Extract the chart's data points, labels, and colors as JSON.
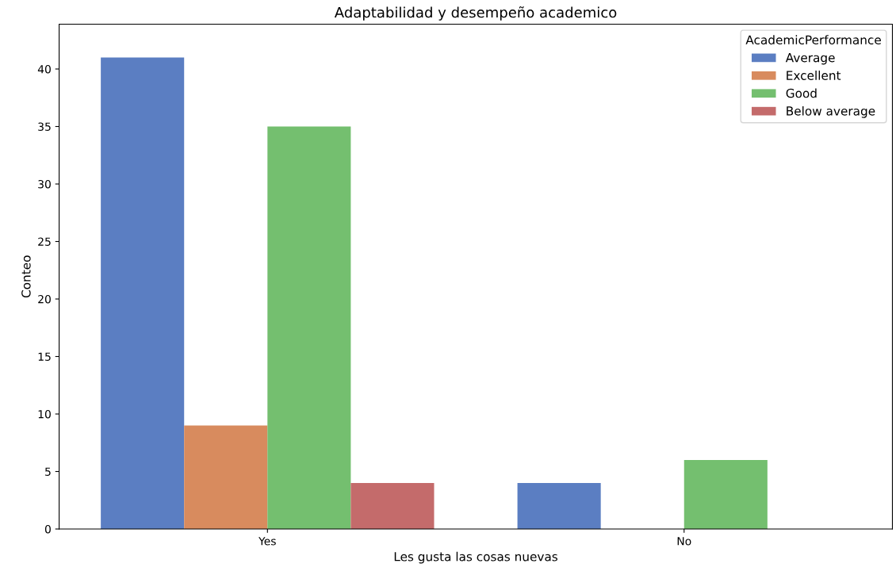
{
  "chart_data": {
    "type": "bar",
    "title": "Adaptabilidad y desempeño academico",
    "xlabel": "Les gusta las cosas nuevas",
    "ylabel": "Conteo",
    "categories": [
      "Yes",
      "No"
    ],
    "series": [
      {
        "name": "Average",
        "color": "#5b7ec2",
        "values": [
          41,
          4
        ]
      },
      {
        "name": "Excellent",
        "color": "#d88b5e",
        "values": [
          9,
          null
        ]
      },
      {
        "name": "Good",
        "color": "#74bf6f",
        "values": [
          35,
          6
        ]
      },
      {
        "name": "Below average",
        "color": "#c46b6b",
        "values": [
          4,
          null
        ]
      }
    ],
    "legend_title": "AcademicPerformance",
    "legend": "top right",
    "ylim": [
      0,
      43.9
    ],
    "yticks": [
      0,
      5,
      10,
      15,
      20,
      25,
      30,
      35,
      40
    ],
    "grid": false
  }
}
